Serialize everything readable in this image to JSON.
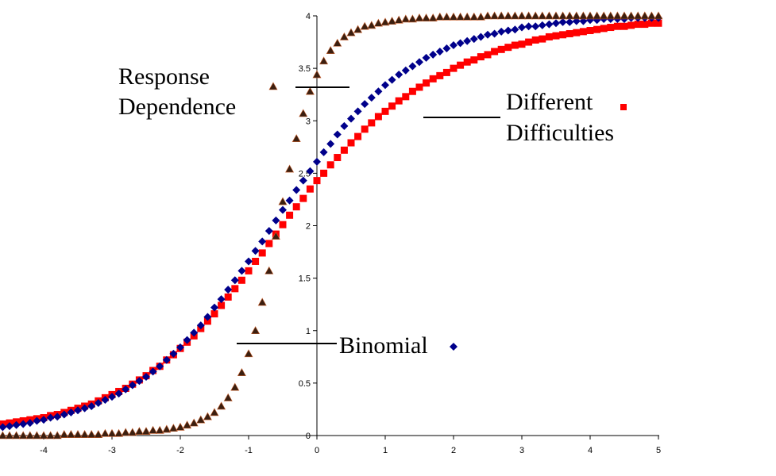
{
  "chart_data": {
    "type": "scatter",
    "xlim": [
      -4.6,
      5
    ],
    "ylim": [
      0,
      4
    ],
    "x_ticks": [
      "-4",
      "-3",
      "-2",
      "-1",
      "0",
      "1",
      "2",
      "3",
      "4",
      "5"
    ],
    "y_ticks": [
      "0",
      "0.5",
      "1",
      "1.5",
      "2",
      "2.5",
      "3",
      "3.5",
      "4"
    ],
    "x_tick_values": [
      -4,
      -3,
      -2,
      -1,
      0,
      1,
      2,
      3,
      4,
      5
    ],
    "y_tick_values": [
      0,
      0.5,
      1,
      1.5,
      2,
      2.5,
      3,
      3.5,
      4
    ],
    "grid": false,
    "x_step": 0.1,
    "series": [
      {
        "name": "Binomial",
        "marker": "diamond",
        "color": "#00008B",
        "x_range": [
          -4.6,
          5
        ],
        "values": [
          0.08,
          0.09,
          0.1,
          0.11,
          0.12,
          0.14,
          0.15,
          0.17,
          0.18,
          0.2,
          0.22,
          0.24,
          0.26,
          0.28,
          0.31,
          0.34,
          0.37,
          0.4,
          0.44,
          0.48,
          0.52,
          0.56,
          0.61,
          0.66,
          0.72,
          0.78,
          0.84,
          0.91,
          0.98,
          1.05,
          1.13,
          1.22,
          1.3,
          1.39,
          1.48,
          1.57,
          1.66,
          1.76,
          1.85,
          1.95,
          2.05,
          2.15,
          2.24,
          2.34,
          2.43,
          2.52,
          2.61,
          2.7,
          2.78,
          2.87,
          2.95,
          3.02,
          3.09,
          3.16,
          3.22,
          3.28,
          3.34,
          3.39,
          3.44,
          3.48,
          3.52,
          3.56,
          3.6,
          3.63,
          3.66,
          3.69,
          3.72,
          3.74,
          3.76,
          3.78,
          3.8,
          3.82,
          3.83,
          3.85,
          3.86,
          3.87,
          3.89,
          3.9,
          3.9,
          3.91,
          3.92,
          3.93,
          3.94,
          3.94,
          3.95,
          3.95,
          3.96,
          3.96,
          3.97,
          3.97,
          3.97,
          3.97,
          3.98,
          3.98,
          3.98,
          3.98,
          3.98
        ]
      },
      {
        "name": "Different Difficulties",
        "marker": "square",
        "color": "#FF0000",
        "x_range": [
          -4.6,
          5
        ],
        "values": [
          0.11,
          0.12,
          0.13,
          0.14,
          0.15,
          0.16,
          0.17,
          0.19,
          0.2,
          0.22,
          0.24,
          0.26,
          0.28,
          0.3,
          0.33,
          0.36,
          0.39,
          0.42,
          0.45,
          0.49,
          0.53,
          0.57,
          0.62,
          0.66,
          0.72,
          0.77,
          0.83,
          0.89,
          0.95,
          1.02,
          1.09,
          1.16,
          1.24,
          1.32,
          1.4,
          1.48,
          1.57,
          1.66,
          1.74,
          1.83,
          1.92,
          2.01,
          2.1,
          2.18,
          2.26,
          2.35,
          2.43,
          2.5,
          2.58,
          2.65,
          2.72,
          2.79,
          2.85,
          2.92,
          2.98,
          3.04,
          3.09,
          3.14,
          3.19,
          3.23,
          3.28,
          3.32,
          3.36,
          3.4,
          3.43,
          3.46,
          3.5,
          3.53,
          3.56,
          3.58,
          3.61,
          3.63,
          3.66,
          3.68,
          3.7,
          3.72,
          3.73,
          3.75,
          3.77,
          3.78,
          3.8,
          3.81,
          3.82,
          3.83,
          3.84,
          3.85,
          3.86,
          3.87,
          3.88,
          3.89,
          3.9,
          3.9,
          3.91,
          3.92,
          3.92,
          3.93,
          3.93
        ]
      },
      {
        "name": "Response Dependence",
        "marker": "triangle",
        "color": "#3B1F10",
        "x_range": [
          -4.6,
          5
        ],
        "values": [
          0.0,
          0.0,
          0.0,
          0.0,
          0.0,
          0.0,
          0.0,
          0.0,
          0.0,
          0.01,
          0.01,
          0.01,
          0.01,
          0.01,
          0.01,
          0.02,
          0.02,
          0.02,
          0.03,
          0.03,
          0.04,
          0.04,
          0.05,
          0.05,
          0.06,
          0.07,
          0.08,
          0.1,
          0.12,
          0.15,
          0.18,
          0.22,
          0.28,
          0.36,
          0.46,
          0.6,
          0.78,
          1.0,
          1.27,
          1.57,
          1.9,
          2.23,
          2.54,
          2.83,
          3.07,
          3.28,
          3.44,
          3.57,
          3.67,
          3.74,
          3.8,
          3.84,
          3.87,
          3.9,
          3.91,
          3.93,
          3.94,
          3.95,
          3.96,
          3.97,
          3.97,
          3.98,
          3.98,
          3.98,
          3.99,
          3.99,
          3.99,
          3.99,
          3.99,
          3.99,
          3.99,
          4.0,
          4.0,
          4.0,
          4.0,
          4.0,
          4.0,
          4.0,
          4.0,
          4.0,
          4.0,
          4.0,
          4.0,
          4.0,
          4.0,
          4.0,
          4.0,
          4.0,
          4.0,
          4.0,
          4.0,
          4.0,
          4.0,
          4.0,
          4.0,
          4.0,
          4.0
        ]
      }
    ],
    "annotations": {
      "response_line1": "Response",
      "response_line2": "Dependence",
      "different_line1": "Different",
      "different_line2": "Difficulties",
      "binomial": "Binomial"
    }
  }
}
